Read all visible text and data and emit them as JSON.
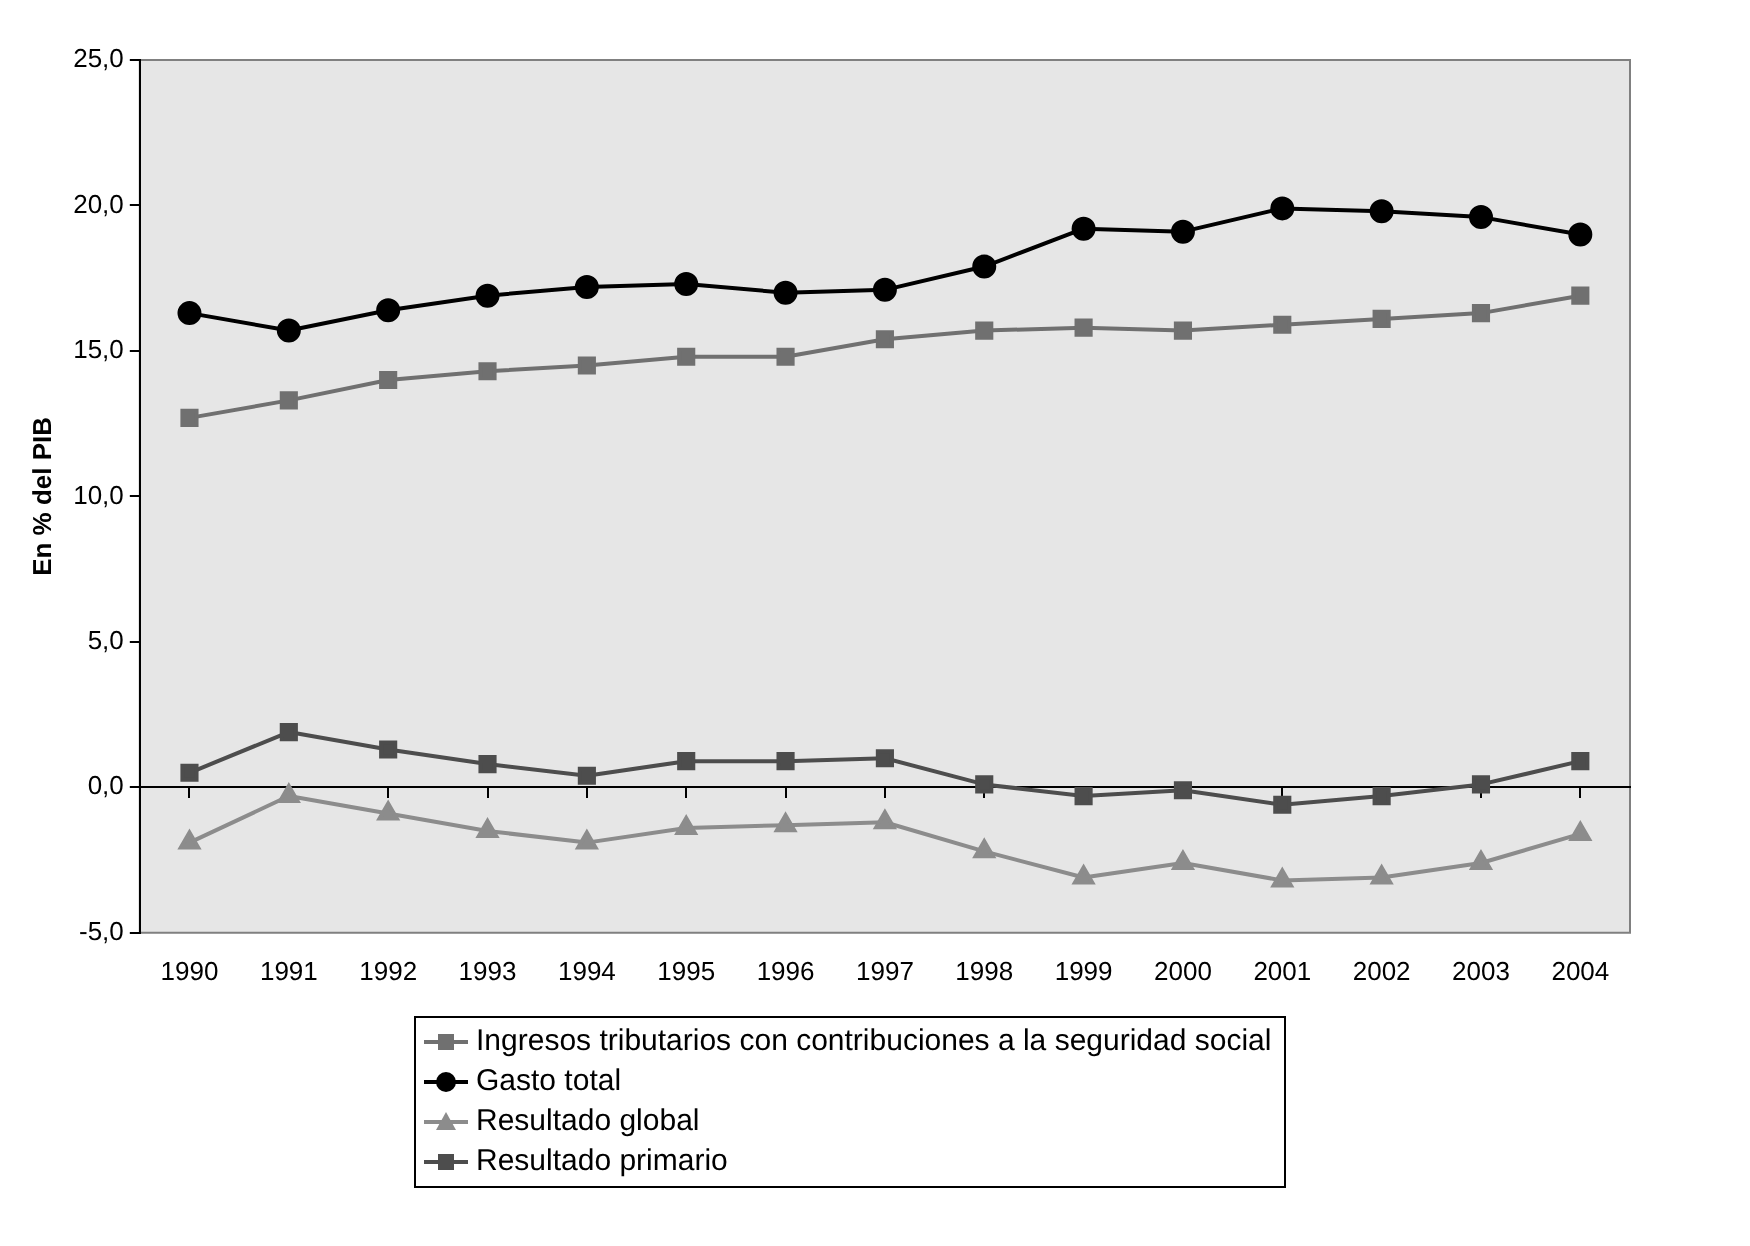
{
  "chart_data": {
    "type": "line",
    "ylabel": "En % del PIB",
    "categories": [
      "1990",
      "1991",
      "1992",
      "1993",
      "1994",
      "1995",
      "1996",
      "1997",
      "1998",
      "1999",
      "2000",
      "2001",
      "2002",
      "2003",
      "2004"
    ],
    "series": [
      {
        "name": "Ingresos tributarios con contribuciones a la seguridad social",
        "color": "#707070",
        "marker": "square",
        "values": [
          12.7,
          13.3,
          14.0,
          14.3,
          14.5,
          14.8,
          14.8,
          15.4,
          15.7,
          15.8,
          15.7,
          15.9,
          16.1,
          16.3,
          16.9
        ]
      },
      {
        "name": "Gasto total",
        "color": "#000000",
        "marker": "circle",
        "values": [
          16.3,
          15.7,
          16.4,
          16.9,
          17.2,
          17.3,
          17.0,
          17.1,
          17.9,
          19.2,
          19.1,
          19.9,
          19.8,
          19.6,
          19.0
        ]
      },
      {
        "name": "Resultado global",
        "color": "#8c8c8c",
        "marker": "triangle",
        "values": [
          -1.9,
          -0.3,
          -0.9,
          -1.5,
          -1.9,
          -1.4,
          -1.3,
          -1.2,
          -2.2,
          -3.1,
          -2.6,
          -3.2,
          -3.1,
          -2.6,
          -1.6
        ]
      },
      {
        "name": "Resultado primario",
        "color": "#4d4d4d",
        "marker": "square",
        "values": [
          0.5,
          1.9,
          1.3,
          0.8,
          0.4,
          0.9,
          0.9,
          1.0,
          0.1,
          -0.3,
          -0.1,
          -0.6,
          -0.3,
          0.1,
          0.9
        ]
      }
    ],
    "ylim": [
      -5,
      25
    ],
    "yticks": [
      {
        "value": -5,
        "label": "-5,0"
      },
      {
        "value": 0,
        "label": "0,0"
      },
      {
        "value": 5,
        "label": "5,0"
      },
      {
        "value": 10,
        "label": "10,0"
      },
      {
        "value": 15,
        "label": "15,0"
      },
      {
        "value": 20,
        "label": "20,0"
      },
      {
        "value": 25,
        "label": "25,0"
      }
    ],
    "legend": "bottom",
    "line_style": "solid"
  }
}
